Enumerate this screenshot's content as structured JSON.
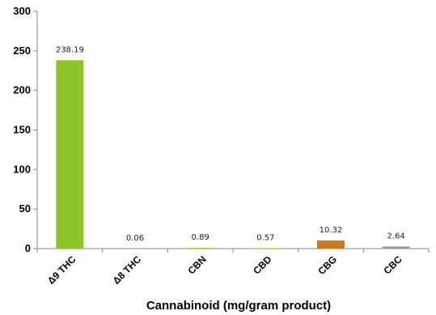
{
  "chart_data": {
    "type": "bar",
    "title": "",
    "xlabel": "Cannabinoid (mg/gram product)",
    "ylabel": "",
    "ylim": [
      0,
      300
    ],
    "yticks": [
      0,
      50,
      100,
      150,
      200,
      250,
      300
    ],
    "grid": false,
    "legend": "none",
    "categories": [
      "Δ9 THC",
      "Δ8 THC",
      "CBN",
      "CBD",
      "CBG",
      "CBC"
    ],
    "values": [
      238.19,
      0.06,
      0.89,
      0.57,
      10.32,
      2.64
    ],
    "data_labels": [
      "238.19",
      "0.06",
      "0.89",
      "0.57",
      "10.32",
      "2.64"
    ],
    "colors": [
      "#8cc429",
      "#8cc429",
      "#8cc429",
      "#8cc429",
      "#cc7722",
      "#999999"
    ]
  }
}
